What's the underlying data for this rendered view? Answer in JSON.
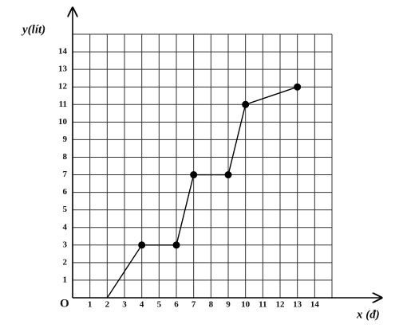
{
  "chart_data": {
    "type": "line",
    "x_label": "x (đ)",
    "y_label": "y(lít)",
    "origin_label": "O",
    "x": [
      2,
      4,
      6,
      7,
      9,
      10,
      13
    ],
    "series": [
      {
        "color": "#000000",
        "values": [
          0,
          3,
          3,
          7,
          7,
          11,
          12
        ]
      }
    ],
    "xlim": [
      0,
      15
    ],
    "ylim": [
      0,
      15
    ],
    "xticks": [
      1,
      2,
      3,
      4,
      5,
      6,
      7,
      8,
      9,
      10,
      11,
      12,
      13,
      14
    ],
    "yticks": [
      1,
      2,
      3,
      4,
      5,
      6,
      7,
      8,
      9,
      10,
      11,
      12,
      13,
      14
    ],
    "grid": true
  }
}
